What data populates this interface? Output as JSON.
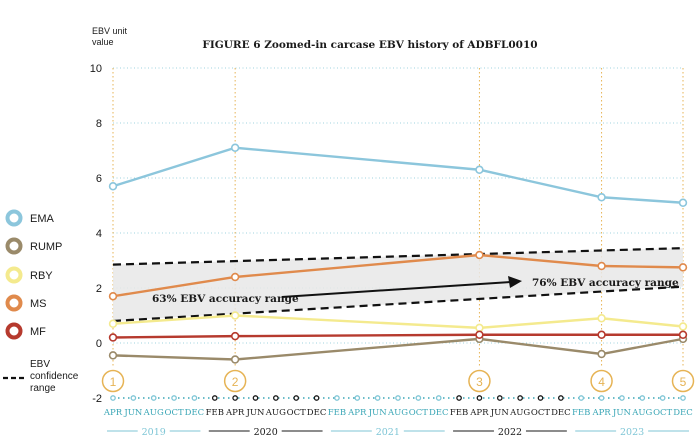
{
  "chart_data": {
    "type": "line",
    "title": "FIGURE 6   Zoomed-in carcase EBV history of ADBFL0010",
    "ylabel_line1": "EBV unit",
    "ylabel_line2": "value",
    "ylim": [
      -2,
      10
    ],
    "yticks": [
      "10",
      "8",
      "6",
      "4",
      "2",
      "0",
      "-2"
    ],
    "grid": "horizontal dotted",
    "legend_position": "left",
    "months": [
      {
        "label": "APR",
        "year": "2019"
      },
      {
        "label": "JUN",
        "year": "2019"
      },
      {
        "label": "AUG",
        "year": "2019"
      },
      {
        "label": "OCT",
        "year": "2019"
      },
      {
        "label": "DEC",
        "year": "2019"
      },
      {
        "label": "FEB",
        "year": "2020"
      },
      {
        "label": "APR",
        "year": "2020"
      },
      {
        "label": "JUN",
        "year": "2020"
      },
      {
        "label": "AUG",
        "year": "2020"
      },
      {
        "label": "OCT",
        "year": "2020"
      },
      {
        "label": "DEC",
        "year": "2020"
      },
      {
        "label": "FEB",
        "year": "2021"
      },
      {
        "label": "APR",
        "year": "2021"
      },
      {
        "label": "JUN",
        "year": "2021"
      },
      {
        "label": "AUG",
        "year": "2021"
      },
      {
        "label": "OCT",
        "year": "2021"
      },
      {
        "label": "DEC",
        "year": "2021"
      },
      {
        "label": "FEB",
        "year": "2022"
      },
      {
        "label": "APR",
        "year": "2022"
      },
      {
        "label": "JUN",
        "year": "2022"
      },
      {
        "label": "AUG",
        "year": "2022"
      },
      {
        "label": "OCT",
        "year": "2022"
      },
      {
        "label": "DEC",
        "year": "2022"
      },
      {
        "label": "FEB",
        "year": "2023"
      },
      {
        "label": "APR",
        "year": "2023"
      },
      {
        "label": "JUN",
        "year": "2023"
      },
      {
        "label": "AUG",
        "year": "2023"
      },
      {
        "label": "OCT",
        "year": "2023"
      },
      {
        "label": "DEC",
        "year": "2023"
      }
    ],
    "years": [
      {
        "label": "2019",
        "color": "#7fc6d6"
      },
      {
        "label": "2020",
        "color": "#1a1a1a"
      },
      {
        "label": "2021",
        "color": "#7fc6d6"
      },
      {
        "label": "2022",
        "color": "#1a1a1a"
      },
      {
        "label": "2023",
        "color": "#7fc6d6"
      }
    ],
    "milestones": [
      {
        "label": "1",
        "x": "APR 2019"
      },
      {
        "label": "2",
        "x": "APR 2020"
      },
      {
        "label": "3",
        "x": "APR 2022"
      },
      {
        "label": "4",
        "x": "APR 2023"
      },
      {
        "label": "5",
        "x": "DEC 2023"
      }
    ],
    "series": [
      {
        "name": "EMA",
        "color": "#8cc6dc",
        "values": [
          5.7,
          7.1,
          6.3,
          5.3,
          5.1
        ]
      },
      {
        "name": "RUMP",
        "color": "#9a8a6a",
        "values": [
          -0.45,
          -0.6,
          0.15,
          -0.4,
          0.15
        ]
      },
      {
        "name": "RBY",
        "color": "#f4ea8e",
        "values": [
          0.7,
          1.0,
          0.55,
          0.9,
          0.6
        ]
      },
      {
        "name": "MS",
        "color": "#e08a4c",
        "values": [
          1.7,
          2.4,
          3.2,
          2.8,
          2.75
        ]
      },
      {
        "name": "MF",
        "color": "#b63a2e",
        "values": [
          0.2,
          0.25,
          0.3,
          0.3,
          0.3
        ]
      }
    ],
    "confidence_range": {
      "legend_label": "EBV confidence range",
      "upper": {
        "x": [
          "APR 2019",
          "DEC 2023"
        ],
        "y": [
          2.85,
          3.45
        ]
      },
      "lower": {
        "x": [
          "APR 2019",
          "DEC 2023"
        ],
        "y": [
          0.8,
          2.05
        ]
      }
    },
    "annotations": {
      "left": "63% EBV accuracy range",
      "right": "76% EBV accuracy range"
    }
  }
}
